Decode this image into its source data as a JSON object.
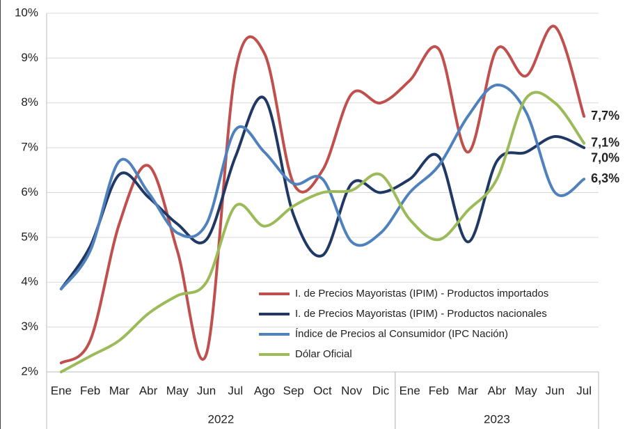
{
  "chart_data": {
    "type": "line",
    "categories": [
      "Ene",
      "Feb",
      "Mar",
      "Abr",
      "May",
      "Jun",
      "Jul",
      "Ago",
      "Sep",
      "Oct",
      "Nov",
      "Dic",
      "Ene",
      "Feb",
      "Mar",
      "Abr",
      "May",
      "Jun",
      "Jul"
    ],
    "x_groups": [
      {
        "label": "2022",
        "span": 12
      },
      {
        "label": "2023",
        "span": 7
      }
    ],
    "ylim": [
      2,
      10
    ],
    "yticks": [
      {
        "value": 2,
        "label": "2%"
      },
      {
        "value": 3,
        "label": "3%"
      },
      {
        "value": 4,
        "label": "4%"
      },
      {
        "value": 5,
        "label": "5%"
      },
      {
        "value": 6,
        "label": "6%"
      },
      {
        "value": 7,
        "label": "7%"
      },
      {
        "value": 8,
        "label": "8%"
      },
      {
        "value": 9,
        "label": "9%"
      },
      {
        "value": 10,
        "label": "10%"
      }
    ],
    "grid": true,
    "smooth": true,
    "legend": "lower right",
    "series": [
      {
        "name": "I. de Precios Mayoristas (IPIM) - Productos importados",
        "color": "#c0504d",
        "values": [
          2.2,
          2.7,
          5.3,
          6.6,
          4.7,
          2.4,
          8.7,
          9.1,
          6.2,
          6.5,
          8.2,
          8.0,
          8.5,
          9.2,
          6.9,
          9.2,
          8.6,
          9.7,
          7.7
        ],
        "value_labels": [
          null,
          null,
          null,
          null,
          null,
          null,
          null,
          null,
          null,
          null,
          null,
          null,
          null,
          null,
          null,
          null,
          null,
          null,
          "7,7%"
        ]
      },
      {
        "name": "I. de Precios Mayoristas (IPIM) - Productos nacionales",
        "color": "#1f3864",
        "values": [
          3.85,
          4.8,
          6.4,
          5.9,
          5.3,
          4.95,
          6.8,
          8.1,
          5.5,
          4.6,
          6.2,
          6.0,
          6.3,
          6.8,
          4.9,
          6.7,
          6.9,
          7.25,
          7.0
        ],
        "value_labels": [
          null,
          null,
          null,
          null,
          null,
          null,
          null,
          null,
          null,
          null,
          null,
          null,
          null,
          null,
          null,
          null,
          null,
          null,
          "7,0%"
        ]
      },
      {
        "name": "Índice de Precios al Consumidor (IPC Nación)",
        "color": "#4f81bd",
        "values": [
          3.85,
          4.7,
          6.7,
          6.0,
          5.1,
          5.3,
          7.4,
          6.9,
          6.2,
          6.3,
          4.9,
          5.1,
          6.0,
          6.6,
          7.7,
          8.4,
          7.8,
          6.0,
          6.3
        ],
        "value_labels": [
          null,
          null,
          null,
          null,
          null,
          null,
          null,
          null,
          null,
          null,
          null,
          null,
          null,
          null,
          null,
          null,
          null,
          null,
          "6,3%"
        ]
      },
      {
        "name": "Dólar Oficial",
        "color": "#9bbb59",
        "values": [
          2.0,
          2.35,
          2.7,
          3.3,
          3.7,
          4.0,
          5.7,
          5.25,
          5.7,
          6.0,
          6.05,
          6.4,
          5.4,
          4.95,
          5.6,
          6.3,
          8.1,
          8.0,
          7.1
        ],
        "value_labels": [
          null,
          null,
          null,
          null,
          null,
          null,
          null,
          null,
          null,
          null,
          null,
          null,
          null,
          null,
          null,
          null,
          null,
          null,
          "7,1%"
        ]
      }
    ]
  }
}
